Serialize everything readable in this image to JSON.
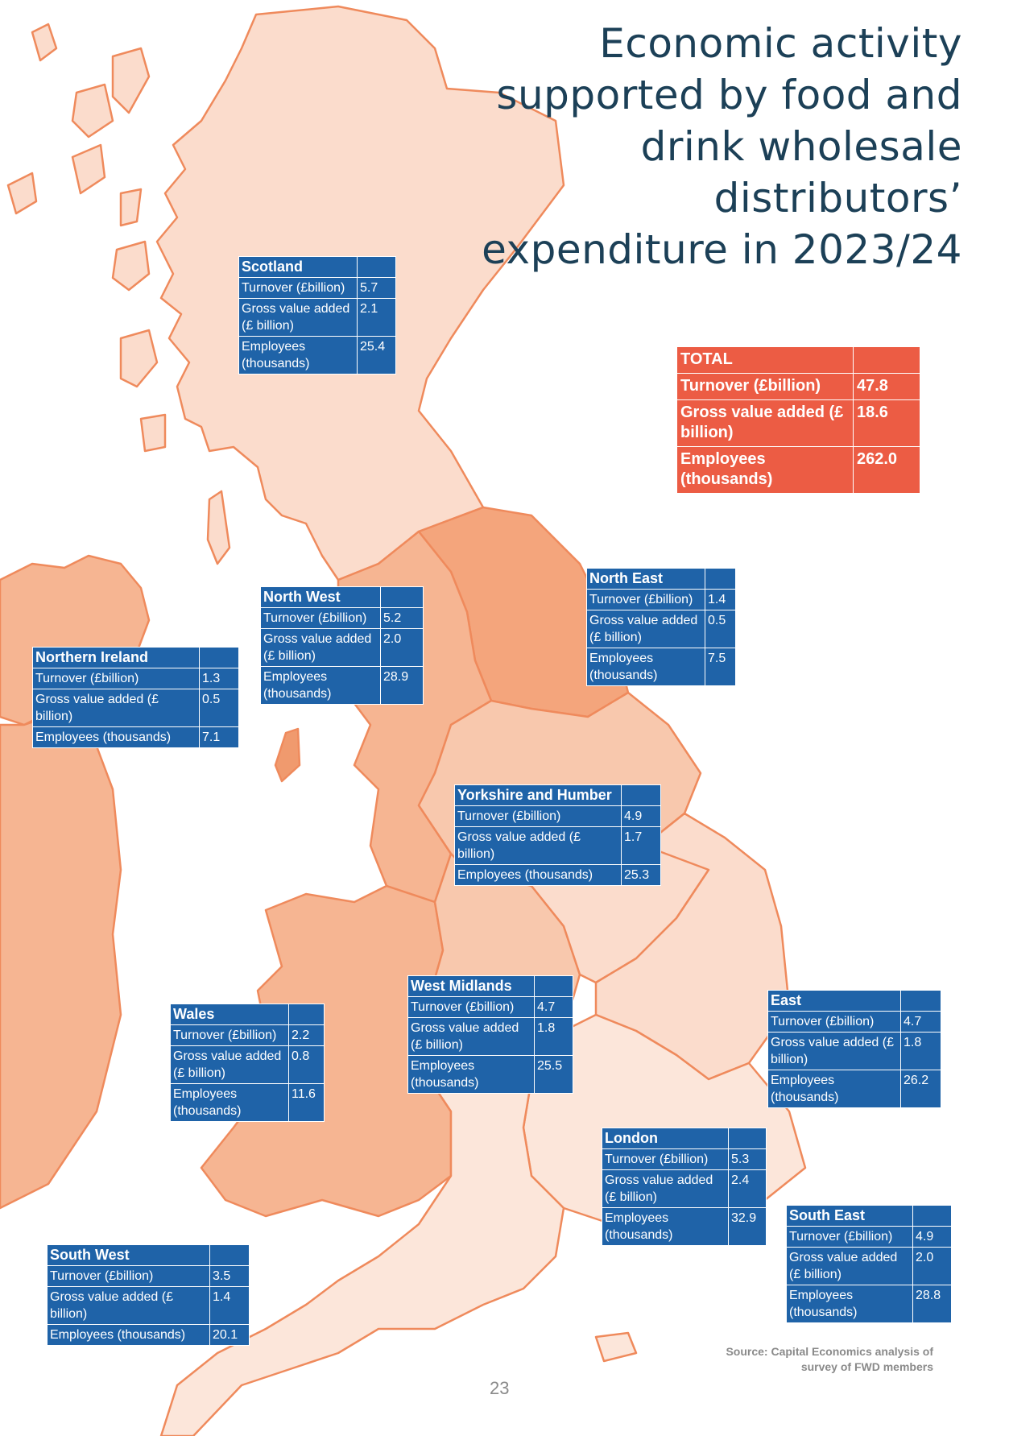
{
  "title_lines": [
    "Economic activity",
    "supported by food and",
    "drink wholesale",
    "distributors’",
    "expenditure in 2023/24"
  ],
  "total": {
    "heading": "TOTAL",
    "rows": [
      {
        "label": "Turnover (£billion)",
        "value": "47.8"
      },
      {
        "label": "Gross value added (£ billion)",
        "value": "18.6"
      },
      {
        "label": "Employees (thousands)",
        "value": "262.0"
      }
    ]
  },
  "regions": [
    {
      "name": "Scotland",
      "rows": [
        {
          "label": "Turnover (£billion)",
          "value": "5.7"
        },
        {
          "label": "Gross value added (£ billion)",
          "value": "2.1"
        },
        {
          "label": "Employees (thousands)",
          "value": "25.4"
        }
      ]
    },
    {
      "name": "North East",
      "rows": [
        {
          "label": "Turnover (£billion)",
          "value": "1.4"
        },
        {
          "label": "Gross value added (£ billion)",
          "value": "0.5"
        },
        {
          "label": "Employees (thousands)",
          "value": "7.5"
        }
      ]
    },
    {
      "name": "North West",
      "rows": [
        {
          "label": "Turnover (£billion)",
          "value": "5.2"
        },
        {
          "label": "Gross value added (£ billion)",
          "value": "2.0"
        },
        {
          "label": "Employees (thousands)",
          "value": "28.9"
        }
      ]
    },
    {
      "name": "Northern Ireland",
      "rows": [
        {
          "label": "Turnover (£billion)",
          "value": "1.3"
        },
        {
          "label": "Gross value added (£ billion)",
          "value": "0.5"
        },
        {
          "label": "Employees (thousands)",
          "value": "7.1"
        }
      ]
    },
    {
      "name": "Yorkshire and Humber",
      "rows": [
        {
          "label": "Turnover (£billion)",
          "value": "4.9"
        },
        {
          "label": "Gross value added (£ billion)",
          "value": "1.7"
        },
        {
          "label": "Employees (thousands)",
          "value": "25.3"
        }
      ]
    },
    {
      "name": "West Midlands",
      "rows": [
        {
          "label": "Turnover (£billion)",
          "value": "4.7"
        },
        {
          "label": "Gross value added (£ billion)",
          "value": "1.8"
        },
        {
          "label": "Employees (thousands)",
          "value": "25.5"
        }
      ]
    },
    {
      "name": "Wales",
      "rows": [
        {
          "label": "Turnover (£billion)",
          "value": "2.2"
        },
        {
          "label": "Gross value added (£ billion)",
          "value": "0.8"
        },
        {
          "label": "Employees (thousands)",
          "value": "11.6"
        }
      ]
    },
    {
      "name": "East",
      "rows": [
        {
          "label": "Turnover (£billion)",
          "value": "4.7"
        },
        {
          "label": "Gross value added (£ billion)",
          "value": "1.8"
        },
        {
          "label": "Employees (thousands)",
          "value": "26.2"
        }
      ]
    },
    {
      "name": "London",
      "rows": [
        {
          "label": "Turnover (£billion)",
          "value": "5.3"
        },
        {
          "label": "Gross value added (£ billion)",
          "value": "2.4"
        },
        {
          "label": "Employees (thousands)",
          "value": "32.9"
        }
      ]
    },
    {
      "name": "South East",
      "rows": [
        {
          "label": "Turnover (£billion)",
          "value": "4.9"
        },
        {
          "label": "Gross value added (£ billion)",
          "value": "2.0"
        },
        {
          "label": "Employees (thousands)",
          "value": "28.8"
        }
      ]
    },
    {
      "name": "South West",
      "rows": [
        {
          "label": "Turnover (£billion)",
          "value": "3.5"
        },
        {
          "label": "Gross value added (£ billion)",
          "value": "1.4"
        },
        {
          "label": "Employees (thousands)",
          "value": "20.1"
        }
      ]
    }
  ],
  "source_lines": [
    "Source: Capital Economics analysis of",
    "survey of FWD members"
  ],
  "page_number": "23",
  "colors": {
    "title": "#1c4057",
    "table_blue": "#1f63a8",
    "total_red": "#ec5c44",
    "region_light": "#fbdccc",
    "region_mid": "#f6b592",
    "region_dark": "#f09a6e",
    "outline": "#ef8a5c"
  }
}
